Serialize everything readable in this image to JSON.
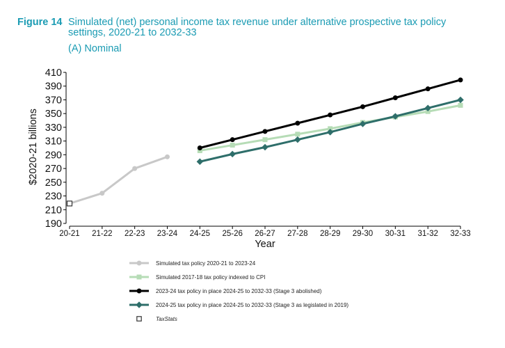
{
  "figure": {
    "number": "Figure 14",
    "title": "Simulated (net) personal income tax revenue under alternative prospective tax policy settings, 2020-21 to 2032-33",
    "subtitle": "(A) Nominal"
  },
  "chart_data": {
    "type": "line",
    "title": "",
    "xlabel": "Year",
    "ylabel": "$2020-21 billions",
    "categories": [
      "20-21",
      "21-22",
      "22-23",
      "23-24",
      "24-25",
      "25-26",
      "26-27",
      "27-28",
      "28-29",
      "29-30",
      "30-31",
      "31-32",
      "32-33"
    ],
    "yticks": [
      190,
      210,
      230,
      250,
      270,
      290,
      310,
      330,
      350,
      370,
      390,
      410
    ],
    "ylim": [
      190,
      410
    ],
    "grid": false,
    "legend_position": "bottom",
    "series": [
      {
        "name": "Simulated tax policy 2020-21 to 2023-24",
        "color": "#c8c8c8",
        "marker": "circle",
        "values": [
          219,
          234,
          270,
          287,
          null,
          null,
          null,
          null,
          null,
          null,
          null,
          null,
          null
        ]
      },
      {
        "name": "Simulated 2017-18 tax policy indexed to CPI",
        "color": "#b6dcb6",
        "marker": "square",
        "values": [
          null,
          null,
          null,
          null,
          296,
          304,
          312,
          320,
          328,
          337,
          345,
          353,
          362
        ]
      },
      {
        "name": "2023-24 tax policy in place 2024-25 to 2032-33 (Stage 3 abolished)",
        "color": "#000000",
        "marker": "circle",
        "values": [
          null,
          null,
          null,
          null,
          300,
          312,
          324,
          336,
          348,
          360,
          373,
          386,
          399
        ]
      },
      {
        "name": "2024-25 tax policy in place 2024-25 to 2032-33 (Stage 3 as legislated in 2019)",
        "color": "#2e6e6a",
        "marker": "diamond",
        "values": [
          null,
          null,
          null,
          null,
          280,
          291,
          301,
          312,
          323,
          335,
          346,
          358,
          370
        ]
      },
      {
        "name": "TaxStats",
        "color": "#333333",
        "marker": "open-square",
        "values": [
          219,
          null,
          null,
          null,
          null,
          null,
          null,
          null,
          null,
          null,
          null,
          null,
          null
        ]
      }
    ]
  }
}
